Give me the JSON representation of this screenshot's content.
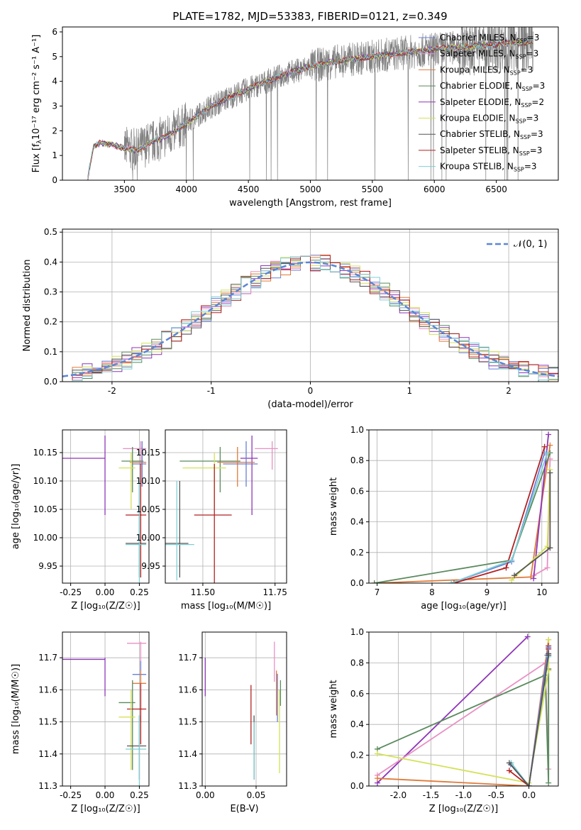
{
  "page_title": "PLATE=1782, MJD=53383, FIBERID=0121, z=0.349",
  "colors": {
    "c1": "#6a7fd6",
    "c2": "#e890c3",
    "c3": "#e07b39",
    "c4": "#5a8a5e",
    "c5": "#8e35b8",
    "c6": "#d4e157",
    "c7": "#555555",
    "c8": "#b22222",
    "c9": "#7ecfd6",
    "data": "#808080",
    "normal": "#5b86d6"
  },
  "legend_spectrum": [
    {
      "label": "Chabrier MILES, N",
      "sub": "SSP",
      "tail": "=3",
      "color": "c1"
    },
    {
      "label": "Salpeter MILES, N",
      "sub": "SSP",
      "tail": "=3",
      "color": "c2"
    },
    {
      "label": "Kroupa MILES, N",
      "sub": "SSP",
      "tail": "=3",
      "color": "c3"
    },
    {
      "label": "Chabrier ELODIE, N",
      "sub": "SSP",
      "tail": "=3",
      "color": "c4"
    },
    {
      "label": "Salpeter ELODIE, N",
      "sub": "SSP",
      "tail": "=2",
      "color": "c5"
    },
    {
      "label": "Kroupa ELODIE, N",
      "sub": "SSP",
      "tail": "=3",
      "color": "c6"
    },
    {
      "label": "Chabrier STELIB, N",
      "sub": "SSP",
      "tail": "=3",
      "color": "c7"
    },
    {
      "label": "Salpeter STELIB, N",
      "sub": "SSP",
      "tail": "=3",
      "color": "c8"
    },
    {
      "label": "Kroupa STELIB, N",
      "sub": "SSP",
      "tail": "=3",
      "color": "c9"
    }
  ],
  "legend_normal": "𝒩(0, 1)",
  "chart_data": [
    {
      "id": "spectrum",
      "type": "line",
      "xlabel": "wavelength [Angstrom, rest frame]",
      "ylabel_main": "Flux [f",
      "ylabel_sub": "λ",
      "ylabel_rest": "10⁻¹⁷ erg cm⁻² s⁻¹ A⁻¹]",
      "xlim": [
        3000,
        7000
      ],
      "ylim": [
        0,
        6.2
      ],
      "xticks": [
        3500,
        4000,
        4500,
        5000,
        5500,
        6000,
        6500
      ],
      "yticks": [
        0,
        1,
        2,
        3,
        4,
        5,
        6
      ],
      "model_continuum": {
        "x": [
          3200,
          3250,
          3300,
          3400,
          3500,
          3600,
          3700,
          3800,
          3900,
          4000,
          4200,
          4500,
          4800,
          5000,
          5200,
          5500,
          6000,
          6500,
          6800
        ],
        "y": [
          0,
          1.35,
          1.5,
          1.45,
          1.3,
          1.2,
          1.5,
          1.7,
          1.95,
          2.3,
          3.0,
          3.7,
          4.3,
          4.6,
          4.8,
          5.0,
          5.3,
          5.5,
          5.6
        ]
      }
    },
    {
      "id": "residuals",
      "type": "histogram",
      "xlabel": "(data-model)/error",
      "ylabel": "Normed distribution",
      "xlim": [
        -2.5,
        2.5
      ],
      "ylim": [
        0,
        0.51
      ],
      "xticks": [
        -2,
        -1,
        0,
        1,
        2
      ],
      "yticks": [
        0.0,
        0.1,
        0.2,
        0.3,
        0.4,
        0.5
      ]
    },
    {
      "id": "age_vs_z",
      "type": "errorbar",
      "xlabel": "Z [log₁₀(Z/Z☉)]",
      "ylabel": "age  [log₁₀(age/yr)]",
      "xlim": [
        -0.31,
        0.32
      ],
      "ylim": [
        9.92,
        10.19
      ],
      "xticks": [
        -0.25,
        0.0,
        0.25
      ],
      "yticks": [
        9.95,
        10.0,
        10.05,
        10.1,
        10.15
      ],
      "points": [
        {
          "x": 0.0,
          "xlo": -0.32,
          "xhi": 0.0,
          "y": 10.14,
          "ylo": 10.04,
          "yhi": 10.18,
          "color": "c5"
        },
        {
          "x": 0.26,
          "xlo": 0.13,
          "xhi": 0.3,
          "y": 10.157,
          "ylo": 10.12,
          "yhi": 10.17,
          "color": "c2"
        },
        {
          "x": 0.2,
          "xlo": 0.12,
          "xhi": 0.28,
          "y": 10.135,
          "ylo": 10.08,
          "yhi": 10.16,
          "color": "c4"
        },
        {
          "x": 0.27,
          "xlo": 0.18,
          "xhi": 0.3,
          "y": 10.133,
          "ylo": 10.09,
          "yhi": 10.16,
          "color": "c3"
        },
        {
          "x": 0.27,
          "xlo": 0.2,
          "xhi": 0.3,
          "y": 10.13,
          "ylo": 10.09,
          "yhi": 10.17,
          "color": "c1"
        },
        {
          "x": 0.19,
          "xlo": 0.1,
          "xhi": 0.22,
          "y": 10.123,
          "ylo": 10.05,
          "yhi": 10.15,
          "color": "c6"
        },
        {
          "x": 0.26,
          "xlo": 0.15,
          "xhi": 0.3,
          "y": 10.04,
          "ylo": 9.93,
          "yhi": 10.13,
          "color": "c8"
        },
        {
          "x": 0.25,
          "xlo": 0.15,
          "xhi": 0.3,
          "y": 9.99,
          "ylo": 9.93,
          "yhi": 10.1,
          "color": "c7"
        },
        {
          "x": 0.25,
          "xlo": 0.15,
          "xhi": 0.3,
          "y": 9.988,
          "ylo": 9.92,
          "yhi": 10.1,
          "color": "c9"
        }
      ]
    },
    {
      "id": "age_vs_mass",
      "type": "errorbar",
      "xlabel": "mass [log₁₀(M/M☉)]",
      "ylabel": "",
      "xlim": [
        11.37,
        11.79
      ],
      "ylim": [
        9.92,
        10.19
      ],
      "xticks": [
        11.5,
        11.75
      ],
      "yticks": [
        9.95,
        10.0,
        10.05,
        10.1,
        10.15
      ],
      "points": [
        {
          "x": 11.67,
          "xlo": 11.63,
          "xhi": 11.69,
          "y": 10.14,
          "ylo": 10.04,
          "yhi": 10.18,
          "color": "c5"
        },
        {
          "x": 11.74,
          "xlo": 11.68,
          "xhi": 11.76,
          "y": 10.157,
          "ylo": 10.12,
          "yhi": 10.17,
          "color": "c2"
        },
        {
          "x": 11.56,
          "xlo": 11.42,
          "xhi": 11.63,
          "y": 10.135,
          "ylo": 10.08,
          "yhi": 10.16,
          "color": "c4"
        },
        {
          "x": 11.62,
          "xlo": 11.55,
          "xhi": 11.68,
          "y": 10.133,
          "ylo": 10.09,
          "yhi": 10.16,
          "color": "c3"
        },
        {
          "x": 11.65,
          "xlo": 11.57,
          "xhi": 11.69,
          "y": 10.13,
          "ylo": 10.09,
          "yhi": 10.17,
          "color": "c1"
        },
        {
          "x": 11.54,
          "xlo": 11.43,
          "xhi": 11.58,
          "y": 10.123,
          "ylo": 10.05,
          "yhi": 10.15,
          "color": "c6"
        },
        {
          "x": 11.54,
          "xlo": 11.47,
          "xhi": 11.6,
          "y": 10.04,
          "ylo": 9.92,
          "yhi": 10.13,
          "color": "c8"
        },
        {
          "x": 11.42,
          "xlo": 11.37,
          "xhi": 11.45,
          "y": 9.99,
          "ylo": 9.93,
          "yhi": 10.1,
          "color": "c7"
        },
        {
          "x": 11.41,
          "xlo": 11.37,
          "xhi": 11.47,
          "y": 9.988,
          "ylo": 9.925,
          "yhi": 10.1,
          "color": "c9"
        }
      ]
    },
    {
      "id": "massweight_vs_age",
      "type": "line",
      "xlabel": "age  [log₁₀(age/yr)]",
      "ylabel": "mass weight",
      "xlim": [
        6.85,
        10.3
      ],
      "ylim": [
        0,
        1.0
      ],
      "xticks": [
        7,
        8,
        9,
        10
      ],
      "yticks": [
        0.0,
        0.2,
        0.4,
        0.6,
        0.8,
        1.0
      ],
      "series": [
        {
          "color": "c2",
          "x": [
            9.85,
            10.1,
            10.15
          ],
          "y": [
            0.05,
            0.1,
            0.81
          ]
        },
        {
          "color": "c3",
          "x": [
            6.95,
            9.8,
            10.15
          ],
          "y": [
            0.0,
            0.04,
            0.9
          ]
        },
        {
          "color": "c1",
          "x": [
            8.35,
            9.45,
            10.05
          ],
          "y": [
            0.0,
            0.14,
            0.85
          ]
        },
        {
          "color": "c4",
          "x": [
            6.95,
            9.45,
            10.15
          ],
          "y": [
            0.0,
            0.15,
            0.85
          ]
        },
        {
          "color": "c5",
          "x": [
            9.85,
            10.12
          ],
          "y": [
            0.03,
            0.97
          ]
        },
        {
          "color": "c6",
          "x": [
            9.45,
            10.1,
            10.15
          ],
          "y": [
            0.02,
            0.24,
            0.74
          ]
        },
        {
          "color": "c7",
          "x": [
            9.5,
            10.15,
            10.15
          ],
          "y": [
            0.05,
            0.23,
            0.72
          ]
        },
        {
          "color": "c8",
          "x": [
            8.4,
            9.35,
            10.05
          ],
          "y": [
            0.0,
            0.1,
            0.89
          ]
        },
        {
          "color": "c9",
          "x": [
            8.35,
            9.45,
            10.1
          ],
          "y": [
            0.0,
            0.15,
            0.85
          ]
        }
      ]
    },
    {
      "id": "mass_vs_z",
      "type": "errorbar",
      "xlabel": "Z [log₁₀(Z/Z☉)]",
      "ylabel": "mass [log₁₀(M/M☉)]",
      "xlim": [
        -0.31,
        0.32
      ],
      "ylim": [
        11.3,
        11.78
      ],
      "xticks": [
        -0.25,
        0.0,
        0.25
      ],
      "yticks": [
        11.3,
        11.4,
        11.5,
        11.6,
        11.7
      ],
      "points": [
        {
          "x": 0.0,
          "xlo": -0.32,
          "xhi": 0.0,
          "y": 11.695,
          "ylo": 11.58,
          "yhi": 11.7,
          "color": "c5"
        },
        {
          "x": 0.26,
          "xlo": 0.16,
          "xhi": 0.3,
          "y": 11.745,
          "ylo": 11.66,
          "yhi": 11.75,
          "color": "c2"
        },
        {
          "x": 0.26,
          "xlo": 0.2,
          "xhi": 0.3,
          "y": 11.648,
          "ylo": 11.5,
          "yhi": 11.69,
          "color": "c1"
        },
        {
          "x": 0.26,
          "xlo": 0.2,
          "xhi": 0.3,
          "y": 11.62,
          "ylo": 11.5,
          "yhi": 11.66,
          "color": "c3"
        },
        {
          "x": 0.2,
          "xlo": 0.1,
          "xhi": 0.22,
          "y": 11.56,
          "ylo": 11.35,
          "yhi": 11.63,
          "color": "c4"
        },
        {
          "x": 0.26,
          "xlo": 0.16,
          "xhi": 0.3,
          "y": 11.54,
          "ylo": 11.43,
          "yhi": 11.62,
          "color": "c8"
        },
        {
          "x": 0.19,
          "xlo": 0.1,
          "xhi": 0.22,
          "y": 11.515,
          "ylo": 11.35,
          "yhi": 11.6,
          "color": "c6"
        },
        {
          "x": 0.25,
          "xlo": 0.16,
          "xhi": 0.3,
          "y": 11.425,
          "ylo": 11.32,
          "yhi": 11.52,
          "color": "c7"
        },
        {
          "x": 0.25,
          "xlo": 0.15,
          "xhi": 0.3,
          "y": 11.415,
          "ylo": 11.3,
          "yhi": 11.52,
          "color": "c9"
        }
      ]
    },
    {
      "id": "mass_vs_ebv",
      "type": "errorbar",
      "xlabel": "E(B-V)",
      "ylabel": "",
      "xlim": [
        -0.003,
        0.08
      ],
      "ylim": [
        11.3,
        11.78
      ],
      "xticks": [
        0.0,
        0.05
      ],
      "yticks": [
        11.3,
        11.4,
        11.5,
        11.6,
        11.7
      ],
      "points": [
        {
          "x": 0.0,
          "y": 11.64,
          "ylo": 11.58,
          "yhi": 11.7,
          "color": "c5"
        },
        {
          "x": 0.045,
          "y": 11.52,
          "ylo": 11.43,
          "yhi": 11.615,
          "color": "c8"
        },
        {
          "x": 0.048,
          "y": 11.42,
          "ylo": 11.32,
          "yhi": 11.52,
          "color": "c7"
        },
        {
          "x": 0.048,
          "y": 11.41,
          "ylo": 11.32,
          "yhi": 11.5,
          "color": "c9"
        },
        {
          "x": 0.068,
          "y": 11.69,
          "ylo": 11.625,
          "yhi": 11.75,
          "color": "c2"
        },
        {
          "x": 0.07,
          "y": 11.6,
          "ylo": 11.52,
          "yhi": 11.66,
          "color": "c3"
        },
        {
          "x": 0.071,
          "y": 11.57,
          "ylo": 11.5,
          "yhi": 11.65,
          "color": "c1"
        },
        {
          "x": 0.073,
          "y": 11.5,
          "ylo": 11.34,
          "yhi": 11.6,
          "color": "c6"
        },
        {
          "x": 0.074,
          "y": 11.59,
          "ylo": 11.55,
          "yhi": 11.63,
          "color": "c4"
        }
      ]
    },
    {
      "id": "massweight_vs_z",
      "type": "line",
      "xlabel": "Z [log₁₀(Z/Z☉)]",
      "ylabel": "mass weight",
      "xlim": [
        -2.45,
        0.45
      ],
      "ylim": [
        0,
        1.0
      ],
      "xticks": [
        -2.0,
        -1.5,
        -1.0,
        -0.5,
        0.0
      ],
      "yticks": [
        0.0,
        0.2,
        0.4,
        0.6,
        0.8,
        1.0
      ],
      "series": [
        {
          "color": "c5",
          "x": [
            -2.32,
            -0.02
          ],
          "y": [
            0.02,
            0.97
          ]
        },
        {
          "color": "c2",
          "x": [
            -2.32,
            0.25,
            0.3,
            0.3
          ],
          "y": [
            0.07,
            0.8,
            0.11,
            0.75
          ]
        },
        {
          "color": "c3",
          "x": [
            -2.32,
            0.0,
            0.3,
            0.3
          ],
          "y": [
            0.05,
            0.0,
            0.95,
            0.76
          ]
        },
        {
          "color": "c4",
          "x": [
            -2.32,
            0.25,
            0.3,
            0.3
          ],
          "y": [
            0.24,
            0.72,
            0.02,
            0.76
          ]
        },
        {
          "color": "c6",
          "x": [
            -2.32,
            0.0,
            0.3,
            0.3
          ],
          "y": [
            0.21,
            0.02,
            0.75,
            0.95
          ]
        },
        {
          "color": "c8",
          "x": [
            -0.3,
            0.0,
            0.3,
            0.3
          ],
          "y": [
            0.1,
            0.0,
            0.89,
            0.91
          ]
        },
        {
          "color": "c1",
          "x": [
            -0.28,
            0.0,
            0.28,
            0.3
          ],
          "y": [
            0.14,
            0.0,
            0.85,
            0.9
          ]
        },
        {
          "color": "c9",
          "x": [
            -0.27,
            0.0,
            0.3,
            0.3
          ],
          "y": [
            0.15,
            0.0,
            0.84,
            0.85
          ]
        },
        {
          "color": "c7",
          "x": [
            -0.3,
            0.0,
            0.3,
            0.3
          ],
          "y": [
            0.15,
            0.0,
            0.85,
            0.86
          ]
        }
      ]
    }
  ]
}
